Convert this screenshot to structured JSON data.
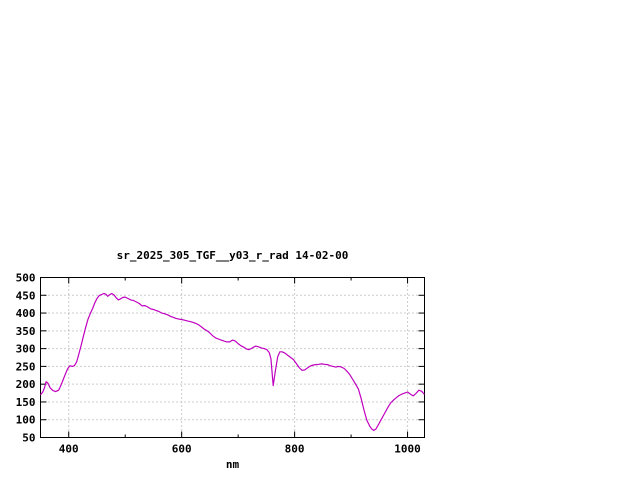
{
  "page": {
    "background": "#ffffff"
  },
  "chart_data": {
    "type": "line",
    "title": "sr_2025_305_TGF__y03_r_rad 14-02-00",
    "xlabel": "nm",
    "ylabel": "",
    "xlim": [
      350,
      1030
    ],
    "ylim": [
      50,
      500
    ],
    "xticks": [
      400,
      600,
      800,
      1000
    ],
    "xticks_minor": [
      400,
      500,
      600,
      700,
      800,
      900,
      1000
    ],
    "yticks": [
      50,
      100,
      150,
      200,
      250,
      300,
      350,
      400,
      450,
      500
    ],
    "grid": "dotted",
    "legend": "none",
    "line_color": "#c000c0",
    "grid_color": "#9a9a9a",
    "axis_color": "#000000",
    "series": [
      {
        "name": "sr_2025_305_TGF__y03_r_rad",
        "points": [
          [
            350,
            170
          ],
          [
            354,
            178
          ],
          [
            357,
            190
          ],
          [
            360,
            207
          ],
          [
            363,
            203
          ],
          [
            367,
            190
          ],
          [
            372,
            182
          ],
          [
            377,
            179
          ],
          [
            382,
            183
          ],
          [
            386,
            196
          ],
          [
            390,
            212
          ],
          [
            394,
            228
          ],
          [
            398,
            243
          ],
          [
            402,
            252
          ],
          [
            406,
            250
          ],
          [
            410,
            252
          ],
          [
            414,
            262
          ],
          [
            418,
            285
          ],
          [
            422,
            310
          ],
          [
            426,
            335
          ],
          [
            430,
            360
          ],
          [
            434,
            382
          ],
          [
            438,
            398
          ],
          [
            442,
            412
          ],
          [
            446,
            428
          ],
          [
            450,
            441
          ],
          [
            454,
            449
          ],
          [
            458,
            452
          ],
          [
            462,
            455
          ],
          [
            466,
            453
          ],
          [
            469,
            447
          ],
          [
            472,
            451
          ],
          [
            476,
            455
          ],
          [
            480,
            451
          ],
          [
            484,
            443
          ],
          [
            488,
            437
          ],
          [
            492,
            440
          ],
          [
            496,
            444
          ],
          [
            500,
            445
          ],
          [
            505,
            441
          ],
          [
            510,
            437
          ],
          [
            515,
            435
          ],
          [
            520,
            431
          ],
          [
            525,
            427
          ],
          [
            530,
            420
          ],
          [
            535,
            421
          ],
          [
            540,
            417
          ],
          [
            545,
            412
          ],
          [
            550,
            410
          ],
          [
            555,
            407
          ],
          [
            560,
            404
          ],
          [
            565,
            400
          ],
          [
            570,
            398
          ],
          [
            575,
            395
          ],
          [
            580,
            391
          ],
          [
            585,
            388
          ],
          [
            590,
            385
          ],
          [
            595,
            383
          ],
          [
            600,
            382
          ],
          [
            605,
            380
          ],
          [
            610,
            378
          ],
          [
            615,
            376
          ],
          [
            620,
            374
          ],
          [
            625,
            371
          ],
          [
            630,
            367
          ],
          [
            635,
            361
          ],
          [
            640,
            355
          ],
          [
            645,
            350
          ],
          [
            650,
            344
          ],
          [
            655,
            336
          ],
          [
            660,
            330
          ],
          [
            665,
            327
          ],
          [
            670,
            324
          ],
          [
            675,
            321
          ],
          [
            680,
            319
          ],
          [
            685,
            319
          ],
          [
            690,
            324
          ],
          [
            695,
            321
          ],
          [
            700,
            314
          ],
          [
            705,
            308
          ],
          [
            710,
            304
          ],
          [
            715,
            299
          ],
          [
            719,
            297
          ],
          [
            723,
            300
          ],
          [
            727,
            304
          ],
          [
            731,
            307
          ],
          [
            736,
            305
          ],
          [
            741,
            302
          ],
          [
            746,
            300
          ],
          [
            751,
            297
          ],
          [
            755,
            289
          ],
          [
            758,
            272
          ],
          [
            762,
            196
          ],
          [
            766,
            238
          ],
          [
            770,
            277
          ],
          [
            774,
            291
          ],
          [
            778,
            291
          ],
          [
            783,
            287
          ],
          [
            788,
            281
          ],
          [
            793,
            275
          ],
          [
            798,
            269
          ],
          [
            803,
            258
          ],
          [
            808,
            247
          ],
          [
            813,
            239
          ],
          [
            818,
            240
          ],
          [
            823,
            246
          ],
          [
            828,
            251
          ],
          [
            833,
            254
          ],
          [
            838,
            255
          ],
          [
            843,
            256
          ],
          [
            848,
            257
          ],
          [
            853,
            256
          ],
          [
            858,
            255
          ],
          [
            863,
            252
          ],
          [
            868,
            250
          ],
          [
            873,
            248
          ],
          [
            878,
            250
          ],
          [
            883,
            248
          ],
          [
            888,
            244
          ],
          [
            893,
            236
          ],
          [
            898,
            226
          ],
          [
            903,
            213
          ],
          [
            908,
            200
          ],
          [
            913,
            186
          ],
          [
            918,
            158
          ],
          [
            923,
            126
          ],
          [
            928,
            98
          ],
          [
            933,
            82
          ],
          [
            937,
            73
          ],
          [
            940,
            70
          ],
          [
            944,
            74
          ],
          [
            948,
            85
          ],
          [
            952,
            97
          ],
          [
            956,
            108
          ],
          [
            960,
            120
          ],
          [
            965,
            134
          ],
          [
            970,
            147
          ],
          [
            975,
            155
          ],
          [
            980,
            162
          ],
          [
            985,
            168
          ],
          [
            990,
            172
          ],
          [
            995,
            175
          ],
          [
            1000,
            178
          ],
          [
            1005,
            172
          ],
          [
            1010,
            167
          ],
          [
            1015,
            174
          ],
          [
            1020,
            183
          ],
          [
            1025,
            180
          ],
          [
            1030,
            171
          ]
        ]
      }
    ]
  }
}
